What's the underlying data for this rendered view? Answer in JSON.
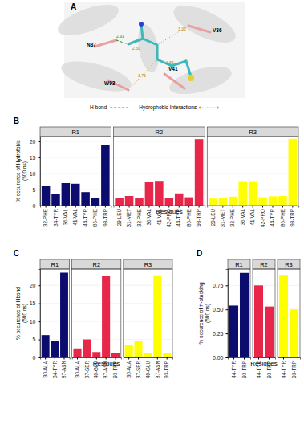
{
  "panel_a": {
    "label": "A",
    "residues": [
      "N87",
      "V36",
      "V41",
      "W93"
    ],
    "distances": [
      "2.91",
      "3.35",
      "2.50",
      "3.56",
      "3.73"
    ],
    "legend": [
      {
        "name": "H-bond",
        "line_style": "dashed"
      },
      {
        "name": "Hydrophobic Interactions",
        "line_style": "dotted"
      }
    ]
  },
  "chart_data": [
    {
      "type": "bar",
      "panel": "B",
      "xlabel": "Residues",
      "ylabel": [
        "% occurence of Hydrofobic",
        "(500 ns)"
      ],
      "ylim": [
        0,
        21.5
      ],
      "yticks": [
        0,
        5,
        10,
        15,
        20
      ],
      "grid": true,
      "series": [
        {
          "name": "R1",
          "color": "#0c0c6e",
          "categories": [
            "32-PHE",
            "34-TYR",
            "36-VAL",
            "41-VAL",
            "44-TYR",
            "86-PHE",
            "93-TRP"
          ],
          "values": [
            6.2,
            3.5,
            7.0,
            6.8,
            4.2,
            2.5,
            18.8
          ]
        },
        {
          "name": "R2",
          "color": "#e8264a",
          "categories": [
            "29-LEU",
            "31-MET",
            "32-PHE",
            "36-VAL",
            "41-VAL",
            "42-PRO",
            "44-TYR",
            "86-PHE",
            "93-TRP"
          ],
          "values": [
            2.3,
            3.0,
            2.5,
            7.5,
            7.7,
            2.5,
            3.8,
            2.6,
            20.7
          ]
        },
        {
          "name": "R3",
          "color": "#ffff00",
          "categories": [
            "29-LEU",
            "31-MET",
            "32-PHE",
            "36-VAL",
            "41-VAL",
            "42-PRO",
            "44-TYR",
            "86-PHE",
            "93-TRP"
          ],
          "values": [
            2.2,
            2.5,
            2.8,
            7.6,
            7.6,
            2.6,
            2.9,
            3.0,
            20.8
          ]
        }
      ]
    },
    {
      "type": "bar",
      "panel": "C",
      "xlabel": "Residues",
      "ylabel": [
        "% occurence of Hbond",
        "(500 ns)"
      ],
      "ylim": [
        0,
        24.5
      ],
      "yticks": [
        0,
        5,
        10,
        15,
        20
      ],
      "grid": true,
      "series": [
        {
          "name": "R1",
          "color": "#0c0c6e",
          "categories": [
            "30-ALA",
            "34-TYR",
            "87-ASN"
          ],
          "values": [
            6.2,
            4.5,
            23.5
          ]
        },
        {
          "name": "R2",
          "color": "#e8264a",
          "categories": [
            "30-ALA",
            "37-SER",
            "40-GLU",
            "87-ASN",
            "93-TRP"
          ],
          "values": [
            2.5,
            5.0,
            1.5,
            22.5,
            1.2
          ]
        },
        {
          "name": "R3",
          "color": "#ffff00",
          "categories": [
            "30-ALA",
            "37-SER",
            "40-GLU",
            "87-ASN",
            "93-TRP"
          ],
          "values": [
            3.5,
            4.5,
            1.3,
            22.8,
            1.2
          ]
        }
      ]
    },
    {
      "type": "bar",
      "panel": "D",
      "xlabel": "Residues",
      "ylabel": [
        "% occurence of π-stacking",
        "(500 ns)"
      ],
      "ylim": [
        0,
        0.92
      ],
      "yticks": [
        {
          "value": 0,
          "label": "0.00"
        },
        {
          "value": 0.25,
          "label": "0.25"
        },
        {
          "value": 0.5,
          "label": "0.50"
        },
        {
          "value": 0.75,
          "label": "0.75"
        }
      ],
      "grid": true,
      "series": [
        {
          "name": "R1",
          "color": "#0c0c6e",
          "categories": [
            "44-TYR",
            "93-TRP"
          ],
          "values": [
            0.54,
            0.88
          ]
        },
        {
          "name": "R2",
          "color": "#e8264a",
          "categories": [
            "44-TYR",
            "93-TRP"
          ],
          "values": [
            0.75,
            0.53
          ]
        },
        {
          "name": "R3",
          "color": "#ffff00",
          "categories": [
            "44-TYR",
            "93-TRP"
          ],
          "values": [
            0.86,
            0.5
          ]
        }
      ]
    }
  ]
}
